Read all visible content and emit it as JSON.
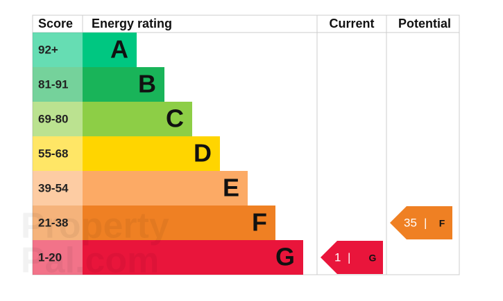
{
  "header": {
    "score": "Score",
    "rating": "Energy rating",
    "current": "Current",
    "potential": "Potential"
  },
  "bands": [
    {
      "score": "92+",
      "letter": "A",
      "color": "#00c781"
    },
    {
      "score": "81-91",
      "letter": "B",
      "color": "#19b459"
    },
    {
      "score": "69-80",
      "letter": "C",
      "color": "#8dce46"
    },
    {
      "score": "55-68",
      "letter": "D",
      "color": "#ffd500"
    },
    {
      "score": "39-54",
      "letter": "E",
      "color": "#fcaa65"
    },
    {
      "score": "21-38",
      "letter": "F",
      "color": "#ef8023"
    },
    {
      "score": "1-20",
      "letter": "G",
      "color": "#e9153b"
    }
  ],
  "current": {
    "score": 1,
    "separator": "|",
    "letter": "G",
    "color": "#e9153b"
  },
  "potential": {
    "score": 35,
    "separator": "|",
    "letter": "F",
    "color": "#ef8023"
  },
  "watermark": [
    "Property",
    "Pal.com"
  ]
}
